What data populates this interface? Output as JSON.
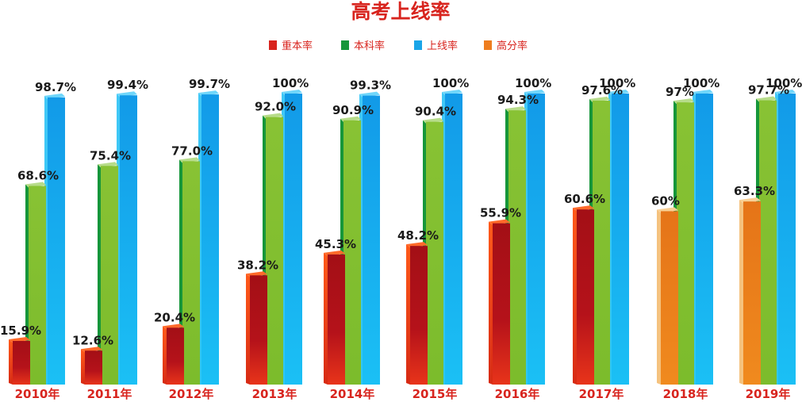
{
  "chart_data": {
    "type": "bar",
    "title": "高考上线率",
    "categories": [
      "2010年",
      "2011年",
      "2012年",
      "2013年",
      "2014年",
      "2015年",
      "2016年",
      "2017年",
      "2018年",
      "2019年"
    ],
    "legend": {
      "position": "top",
      "items": [
        {
          "label": "重本率",
          "color": "#d8241e"
        },
        {
          "label": "本科率",
          "color": "#16963a"
        },
        {
          "label": "上线率",
          "color": "#1aa5e8"
        },
        {
          "label": "高分率",
          "color": "#ee7d1e"
        }
      ]
    },
    "series": [
      {
        "name": "重本率",
        "color": "#d8241e",
        "values": [
          15.9,
          12.6,
          20.4,
          38.2,
          45.3,
          48.2,
          55.9,
          60.6,
          null,
          null
        ],
        "labels": [
          "15.9%",
          "12.6%",
          "20.4%",
          "38.2%",
          "45.3%",
          "48.2%",
          "55.9%",
          "60.6%",
          null,
          null
        ]
      },
      {
        "name": "高分率",
        "color": "#ee7d1e",
        "values": [
          null,
          null,
          null,
          null,
          null,
          null,
          null,
          null,
          60,
          63.3
        ],
        "labels": [
          null,
          null,
          null,
          null,
          null,
          null,
          null,
          null,
          "60%",
          "63.3%"
        ]
      },
      {
        "name": "本科率",
        "color": "#16963a",
        "values": [
          68.6,
          75.4,
          77.0,
          92.0,
          90.9,
          90.4,
          94.3,
          97.6,
          97,
          97.7
        ],
        "labels": [
          "68.6%",
          "75.4%",
          "77.0%",
          "92.0%",
          "90.9%",
          "90.4%",
          "94.3%",
          "97.6%",
          "97%",
          "97.7%"
        ]
      },
      {
        "name": "上线率",
        "color": "#1aa5e8",
        "values": [
          98.7,
          99.4,
          99.7,
          100,
          99.3,
          100,
          100,
          100,
          100,
          100
        ],
        "labels": [
          "98.7%",
          "99.4%",
          "99.7%",
          "100%",
          "99.3%",
          "100%",
          "100%",
          "100%",
          "100%",
          "100%"
        ]
      }
    ],
    "ylim": [
      0,
      100
    ],
    "grid": false
  }
}
